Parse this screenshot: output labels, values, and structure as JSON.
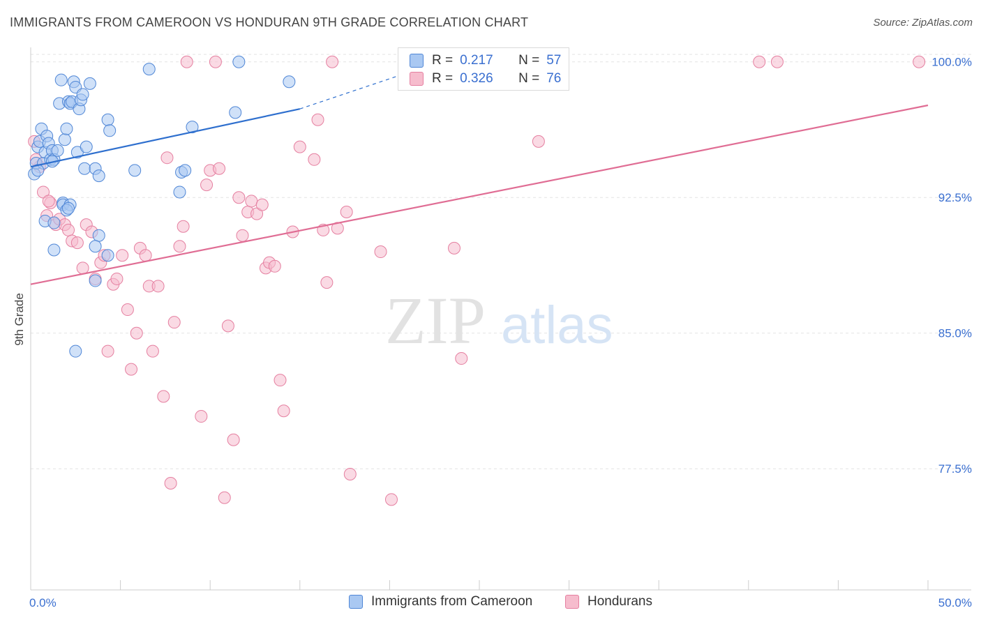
{
  "title": "IMMIGRANTS FROM CAMEROON VS HONDURAN 9TH GRADE CORRELATION CHART",
  "source": "Source: ZipAtlas.com",
  "watermark": {
    "zip": "ZIP",
    "atlas": "atlas"
  },
  "colors": {
    "blue_fill": "#a9c8f2",
    "blue_stroke": "#4f86d6",
    "blue_line": "#2e6fce",
    "pink_fill": "#f6bccd",
    "pink_stroke": "#e57fa0",
    "pink_line": "#e06d94",
    "axis_text": "#3a6fd0",
    "grid": "#e3e3e3"
  },
  "legend": {
    "rows": [
      {
        "r_label": "R =",
        "r_value": "0.217",
        "n_label": "N =",
        "n_value": "57"
      },
      {
        "r_label": "R =",
        "r_value": "0.326",
        "n_label": "N =",
        "n_value": "76"
      }
    ]
  },
  "chart_data": {
    "type": "scatter",
    "title": "IMMIGRANTS FROM CAMEROON VS HONDURAN 9TH GRADE CORRELATION CHART",
    "xlabel": "",
    "ylabel": "9th Grade",
    "xlim": [
      0,
      50
    ],
    "ylim": [
      70.8,
      100.8
    ],
    "x_tick_labels": [
      "0.0%",
      "50.0%"
    ],
    "y_ticks": [
      77.5,
      85.0,
      92.5,
      100.0
    ],
    "y_tick_labels": [
      "77.5%",
      "85.0%",
      "92.5%",
      "100.0%"
    ],
    "grid": true,
    "legend_position": "top-center",
    "series": [
      {
        "name": "Immigrants from Cameroon",
        "color": "#a9c8f2",
        "trend": {
          "x": [
            0.0,
            15.0
          ],
          "y": [
            94.2,
            97.4
          ],
          "dashed_to": [
            22.5,
            99.9
          ]
        },
        "points": [
          [
            0.2,
            93.8
          ],
          [
            0.3,
            94.4
          ],
          [
            0.4,
            95.3
          ],
          [
            0.5,
            95.6
          ],
          [
            0.6,
            96.3
          ],
          [
            0.7,
            94.4
          ],
          [
            0.8,
            95.0
          ],
          [
            0.9,
            95.9
          ],
          [
            1.0,
            95.5
          ],
          [
            1.1,
            94.6
          ],
          [
            1.2,
            95.1
          ],
          [
            1.3,
            94.6
          ],
          [
            1.5,
            95.1
          ],
          [
            1.6,
            97.7
          ],
          [
            1.7,
            99.0
          ],
          [
            1.8,
            92.2
          ],
          [
            1.9,
            95.7
          ],
          [
            2.0,
            96.3
          ],
          [
            2.1,
            97.8
          ],
          [
            2.2,
            97.7
          ],
          [
            2.3,
            97.8
          ],
          [
            2.4,
            98.9
          ],
          [
            2.5,
            98.6
          ],
          [
            2.6,
            95.0
          ],
          [
            2.7,
            97.4
          ],
          [
            2.8,
            97.9
          ],
          [
            2.9,
            98.2
          ],
          [
            3.0,
            94.1
          ],
          [
            3.1,
            95.3
          ],
          [
            3.3,
            98.8
          ],
          [
            3.6,
            94.1
          ],
          [
            3.8,
            93.7
          ],
          [
            4.3,
            96.8
          ],
          [
            4.4,
            96.2
          ],
          [
            5.8,
            94.0
          ],
          [
            6.6,
            99.6
          ],
          [
            8.4,
            93.9
          ],
          [
            8.6,
            94.0
          ],
          [
            9.0,
            96.4
          ],
          [
            11.4,
            97.2
          ],
          [
            11.6,
            100.0
          ],
          [
            14.4,
            98.9
          ],
          [
            0.8,
            91.2
          ],
          [
            1.3,
            91.1
          ],
          [
            1.8,
            92.1
          ],
          [
            2.2,
            92.1
          ],
          [
            2.0,
            91.8
          ],
          [
            3.8,
            90.4
          ],
          [
            3.6,
            89.8
          ],
          [
            4.3,
            89.3
          ],
          [
            1.3,
            89.6
          ],
          [
            3.6,
            87.9
          ],
          [
            2.5,
            84.0
          ],
          [
            8.3,
            92.8
          ],
          [
            1.2,
            94.5
          ],
          [
            0.4,
            94.0
          ],
          [
            2.1,
            91.9
          ]
        ]
      },
      {
        "name": "Hondurans",
        "color": "#f6bccd",
        "trend": {
          "x": [
            0.0,
            50.0
          ],
          "y": [
            87.7,
            97.6
          ]
        },
        "points": [
          [
            0.2,
            95.6
          ],
          [
            0.5,
            94.2
          ],
          [
            0.7,
            92.8
          ],
          [
            0.9,
            91.5
          ],
          [
            1.1,
            92.2
          ],
          [
            1.4,
            91.0
          ],
          [
            1.6,
            91.3
          ],
          [
            1.9,
            91.0
          ],
          [
            2.1,
            90.7
          ],
          [
            2.3,
            90.1
          ],
          [
            2.6,
            90.0
          ],
          [
            2.9,
            88.6
          ],
          [
            3.1,
            91.0
          ],
          [
            3.4,
            90.6
          ],
          [
            3.6,
            88.0
          ],
          [
            3.9,
            88.9
          ],
          [
            4.1,
            89.3
          ],
          [
            4.3,
            84.0
          ],
          [
            4.6,
            87.7
          ],
          [
            4.8,
            88.0
          ],
          [
            5.1,
            89.3
          ],
          [
            5.4,
            86.3
          ],
          [
            5.6,
            83.0
          ],
          [
            5.9,
            85.0
          ],
          [
            6.1,
            89.7
          ],
          [
            6.4,
            89.3
          ],
          [
            6.6,
            87.6
          ],
          [
            6.8,
            84.0
          ],
          [
            7.1,
            87.6
          ],
          [
            7.4,
            81.5
          ],
          [
            7.6,
            94.7
          ],
          [
            7.8,
            76.7
          ],
          [
            8.0,
            85.6
          ],
          [
            8.3,
            89.8
          ],
          [
            8.5,
            90.9
          ],
          [
            8.7,
            100.0
          ],
          [
            9.5,
            80.4
          ],
          [
            9.8,
            93.2
          ],
          [
            10.0,
            94.0
          ],
          [
            10.3,
            100.0
          ],
          [
            10.5,
            94.1
          ],
          [
            10.8,
            75.9
          ],
          [
            11.0,
            85.4
          ],
          [
            11.3,
            79.1
          ],
          [
            11.6,
            92.5
          ],
          [
            11.8,
            90.4
          ],
          [
            12.1,
            91.7
          ],
          [
            12.3,
            92.3
          ],
          [
            12.6,
            91.6
          ],
          [
            12.9,
            92.1
          ],
          [
            13.1,
            88.6
          ],
          [
            13.3,
            88.9
          ],
          [
            13.6,
            88.7
          ],
          [
            13.9,
            82.4
          ],
          [
            14.1,
            80.7
          ],
          [
            14.6,
            90.6
          ],
          [
            15.0,
            95.3
          ],
          [
            15.8,
            94.6
          ],
          [
            16.0,
            96.8
          ],
          [
            16.3,
            90.7
          ],
          [
            16.5,
            87.8
          ],
          [
            16.8,
            100.0
          ],
          [
            17.1,
            90.8
          ],
          [
            17.6,
            91.7
          ],
          [
            17.8,
            77.2
          ],
          [
            19.5,
            89.5
          ],
          [
            20.1,
            75.8
          ],
          [
            22.0,
            100.0
          ],
          [
            23.6,
            89.7
          ],
          [
            24.0,
            83.6
          ],
          [
            28.3,
            95.6
          ],
          [
            40.6,
            100.0
          ],
          [
            41.6,
            100.0
          ],
          [
            49.5,
            100.0
          ],
          [
            1.0,
            92.3
          ],
          [
            0.3,
            94.6
          ]
        ]
      }
    ]
  },
  "bottom_legend": [
    {
      "label": "Immigrants from Cameroon"
    },
    {
      "label": "Hondurans"
    }
  ]
}
